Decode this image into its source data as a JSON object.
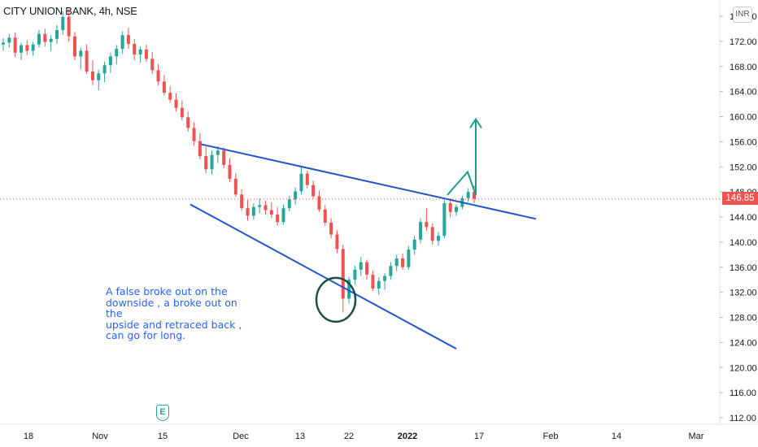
{
  "header": {
    "title": "CITY UNION BANK, 4h, NSE",
    "currency_label": "INR"
  },
  "chart_data": {
    "type": "candlestick",
    "title": "CITY UNION BANK, 4h, NSE",
    "y_axis": {
      "ticks": [
        "176.00",
        "172.00",
        "168.00",
        "164.00",
        "160.00",
        "156.00",
        "152.00",
        "148.00",
        "144.00",
        "140.00",
        "136.00",
        "132.00",
        "128.00",
        "124.00",
        "120.00",
        "116.00",
        "112.00"
      ],
      "range": [
        111,
        179
      ]
    },
    "x_axis": {
      "ticks": [
        "18",
        "Nov",
        "15",
        "Dec",
        "13",
        "22",
        "2022",
        "17",
        "Feb",
        "14",
        "Mar"
      ],
      "bold_tick": "2022"
    },
    "last_price": "146.85",
    "colors": {
      "up": "#26a69a",
      "down": "#ef5350",
      "trendline": "#2255cc",
      "arrow": "#1d9a8a",
      "circle": "#1d4f45"
    },
    "candles": [
      [
        171.5,
        172.5,
        170.5,
        171.8
      ],
      [
        171.8,
        173.2,
        171.0,
        172.6
      ],
      [
        172.6,
        173.4,
        169.5,
        170.2
      ],
      [
        170.2,
        171.8,
        169.0,
        171.4
      ],
      [
        171.4,
        172.2,
        169.8,
        170.5
      ],
      [
        170.5,
        171.9,
        169.7,
        171.5
      ],
      [
        171.5,
        173.8,
        171.0,
        173.2
      ],
      [
        173.2,
        174.0,
        171.2,
        171.9
      ],
      [
        171.9,
        173.0,
        170.5,
        172.4
      ],
      [
        172.4,
        174.6,
        171.6,
        173.8
      ],
      [
        173.8,
        176.8,
        173.0,
        175.9
      ],
      [
        175.9,
        177.2,
        172.0,
        172.8
      ],
      [
        172.8,
        173.5,
        169.0,
        169.6
      ],
      [
        169.6,
        171.0,
        167.5,
        170.5
      ],
      [
        170.5,
        171.5,
        166.8,
        167.2
      ],
      [
        167.2,
        169.0,
        165.0,
        165.8
      ],
      [
        165.8,
        167.5,
        164.2,
        166.9
      ],
      [
        166.9,
        168.8,
        165.5,
        168.2
      ],
      [
        168.2,
        170.2,
        167.0,
        169.6
      ],
      [
        169.6,
        171.4,
        168.3,
        170.8
      ],
      [
        170.8,
        173.6,
        170.0,
        173.0
      ],
      [
        173.0,
        174.2,
        170.8,
        171.6
      ],
      [
        171.6,
        172.4,
        169.0,
        169.9
      ],
      [
        169.9,
        171.2,
        168.6,
        170.7
      ],
      [
        170.7,
        171.5,
        168.7,
        169.2
      ],
      [
        169.2,
        170.3,
        166.8,
        167.4
      ],
      [
        167.4,
        168.4,
        165.0,
        165.6
      ],
      [
        165.6,
        166.6,
        163.4,
        163.8
      ],
      [
        163.8,
        164.8,
        162.2,
        162.7
      ],
      [
        162.7,
        163.7,
        160.8,
        161.4
      ],
      [
        161.4,
        162.6,
        159.4,
        159.9
      ],
      [
        159.9,
        160.8,
        157.6,
        158.2
      ],
      [
        158.2,
        159.1,
        155.4,
        156.1
      ],
      [
        156.1,
        157.4,
        153.2,
        153.7
      ],
      [
        153.7,
        155.2,
        151.0,
        151.6
      ],
      [
        151.6,
        154.6,
        150.8,
        153.9
      ],
      [
        153.9,
        155.3,
        152.6,
        154.6
      ],
      [
        154.6,
        155.1,
        151.8,
        152.3
      ],
      [
        152.3,
        153.4,
        149.6,
        150.1
      ],
      [
        150.1,
        151.0,
        147.2,
        147.6
      ],
      [
        147.6,
        148.4,
        145.0,
        145.4
      ],
      [
        145.4,
        146.7,
        143.4,
        144.2
      ],
      [
        144.2,
        146.2,
        143.6,
        145.6
      ],
      [
        145.6,
        147.0,
        144.6,
        145.9
      ],
      [
        145.9,
        146.6,
        144.4,
        145.1
      ],
      [
        145.1,
        146.3,
        143.8,
        144.4
      ],
      [
        144.4,
        145.6,
        142.6,
        143.2
      ],
      [
        143.2,
        146.0,
        142.8,
        145.4
      ],
      [
        145.4,
        147.4,
        144.9,
        146.8
      ],
      [
        146.8,
        148.7,
        145.9,
        148.1
      ],
      [
        148.1,
        152.0,
        147.6,
        150.9
      ],
      [
        150.9,
        151.4,
        148.6,
        149.1
      ],
      [
        149.1,
        149.8,
        146.9,
        147.3
      ],
      [
        147.3,
        148.2,
        144.8,
        145.2
      ],
      [
        145.2,
        145.9,
        142.6,
        143.1
      ],
      [
        143.1,
        143.8,
        140.6,
        141.2
      ],
      [
        141.2,
        141.9,
        138.2,
        138.9
      ],
      [
        138.9,
        139.6,
        128.8,
        131.0
      ],
      [
        131.0,
        134.5,
        130.2,
        134.0
      ],
      [
        134.0,
        136.2,
        133.2,
        135.6
      ],
      [
        135.6,
        137.6,
        134.6,
        136.8
      ],
      [
        136.8,
        137.2,
        134.0,
        134.8
      ],
      [
        134.8,
        135.4,
        132.2,
        132.6
      ],
      [
        132.6,
        134.4,
        131.6,
        133.8
      ],
      [
        133.8,
        135.0,
        132.4,
        134.6
      ],
      [
        134.6,
        136.8,
        134.0,
        136.2
      ],
      [
        136.2,
        138.0,
        135.4,
        137.4
      ],
      [
        137.4,
        138.2,
        135.6,
        136.0
      ],
      [
        136.0,
        139.4,
        135.6,
        138.8
      ],
      [
        138.8,
        141.0,
        138.0,
        140.4
      ],
      [
        140.4,
        143.8,
        139.8,
        143.2
      ],
      [
        143.2,
        145.4,
        141.8,
        142.4
      ],
      [
        142.4,
        143.0,
        139.6,
        140.2
      ],
      [
        140.2,
        141.6,
        139.4,
        141.0
      ],
      [
        141.0,
        146.8,
        140.6,
        146.2
      ],
      [
        146.2,
        147.0,
        144.0,
        144.8
      ],
      [
        144.8,
        146.0,
        144.2,
        145.6
      ],
      [
        145.6,
        147.4,
        145.2,
        147.0
      ],
      [
        147.0,
        148.6,
        146.4,
        148.0
      ],
      [
        148.0,
        149.0,
        146.2,
        146.9
      ]
    ]
  },
  "drawings": {
    "annotation_text": "A false broke out on the\ndownside , a broke out on the\nupside and retraced back ,\ncan go for long.",
    "event_label": "E"
  }
}
